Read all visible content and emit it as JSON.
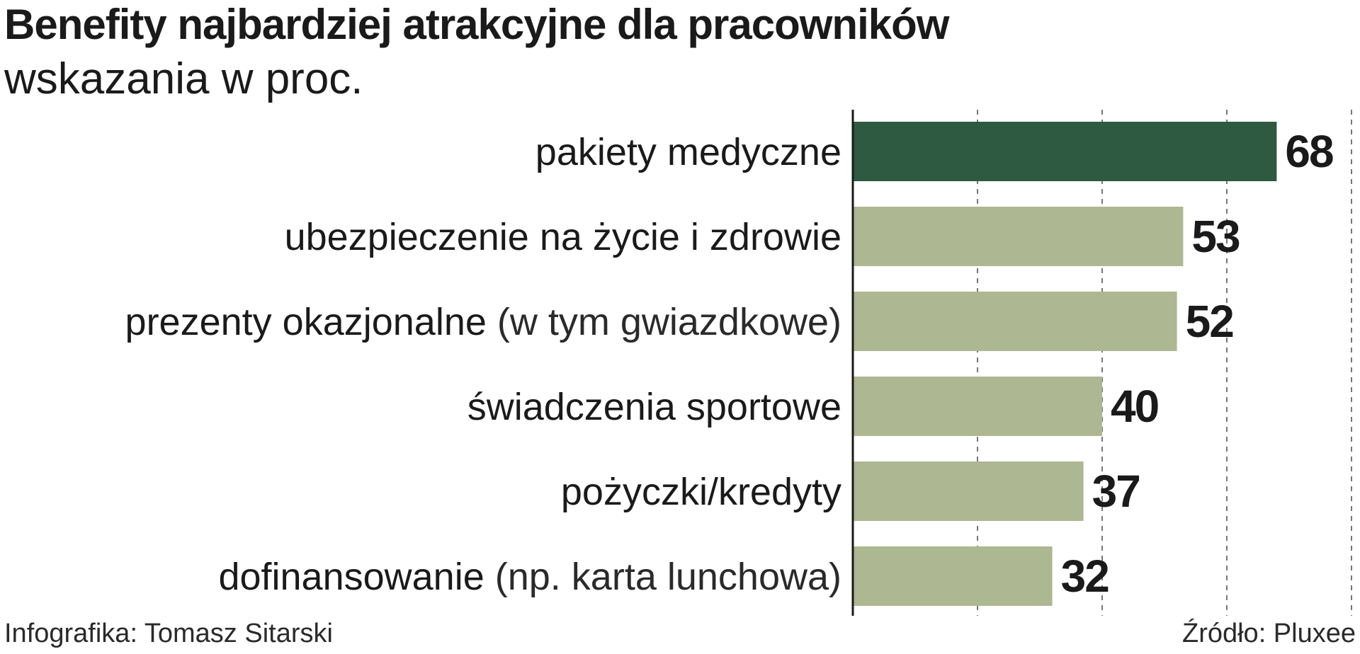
{
  "header": {
    "title": "Benefity najbardziej atrakcyjne dla pracowników",
    "subtitle": "wskazania w proc."
  },
  "footer": {
    "credit": "Infografika: Tomasz Sitarski",
    "source": "Źródło: Pluxee"
  },
  "colors": {
    "highlight_bar": "#2d5a40",
    "bar": "#adb791",
    "text": "#1a1a1a",
    "grid": "#777777"
  },
  "chart_data": {
    "type": "bar",
    "orientation": "horizontal",
    "title": "Benefity najbardziej atrakcyjne dla pracowników",
    "subtitle": "wskazania w proc.",
    "categories": [
      {
        "main": "pakiety medyczne",
        "note": ""
      },
      {
        "main": "ubezpieczenie na życie i zdrowie",
        "note": ""
      },
      {
        "main": "prezenty okazjonalne",
        "note": "(w tym gwiazdkowe)"
      },
      {
        "main": "świadczenia sportowe",
        "note": ""
      },
      {
        "main": "pożyczki/kredyty",
        "note": ""
      },
      {
        "main": "dofinansowanie",
        "note": "(np. karta lunchowa)"
      }
    ],
    "values": [
      68,
      53,
      52,
      40,
      37,
      32
    ],
    "highlight_index": 0,
    "xlim": [
      0,
      80
    ],
    "grid": true,
    "grid_style": "dashed vertical",
    "grid_values": [
      20,
      40,
      60,
      80
    ]
  }
}
